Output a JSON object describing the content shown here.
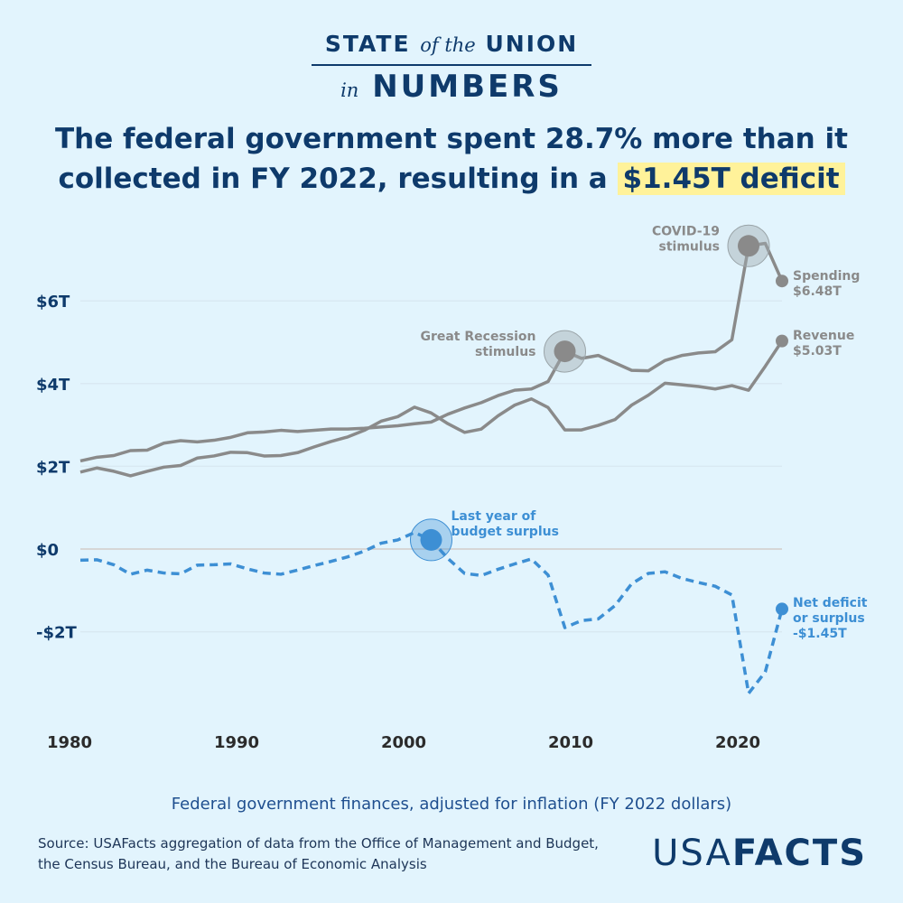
{
  "header": {
    "brand_line1_a": "STATE",
    "brand_line1_b": "of the",
    "brand_line1_c": "UNION",
    "brand_line2_a": "in",
    "brand_line2_b": "NUMBERS",
    "headline_line1": "The federal government spent 28.7% more than it",
    "headline_line2": "collected in FY 2022, resulting in a",
    "headline_highlight": "$1.45T deficit"
  },
  "chart_data": {
    "type": "line",
    "title": "",
    "subtitle": "Federal government finances, adjusted for inflation (FY 2022 dollars)",
    "xlabel": "",
    "ylabel": "",
    "x": [
      1980,
      1981,
      1982,
      1983,
      1984,
      1985,
      1986,
      1987,
      1988,
      1989,
      1990,
      1991,
      1992,
      1993,
      1994,
      1995,
      1996,
      1997,
      1998,
      1999,
      2000,
      2001,
      2002,
      2003,
      2004,
      2005,
      2006,
      2007,
      2008,
      2009,
      2010,
      2011,
      2012,
      2013,
      2014,
      2015,
      2016,
      2017,
      2018,
      2019,
      2020,
      2021,
      2022
    ],
    "x_ticks": [
      "1980",
      "1990",
      "2000",
      "2010",
      "2020"
    ],
    "y_ticks": [
      {
        "value": -2,
        "label": "-$2T"
      },
      {
        "value": 0,
        "label": "$0"
      },
      {
        "value": 2,
        "label": "$2T"
      },
      {
        "value": 4,
        "label": "$4T"
      },
      {
        "value": 6,
        "label": "$6T"
      }
    ],
    "ylim": [
      -4,
      8
    ],
    "xlim": [
      1980,
      2022
    ],
    "grid": true,
    "series": [
      {
        "name": "Spending",
        "end_label": "$6.48T",
        "color": "#8a8a8a",
        "style": "solid",
        "values": [
          2.13,
          2.22,
          2.26,
          2.38,
          2.39,
          2.56,
          2.62,
          2.59,
          2.63,
          2.7,
          2.81,
          2.83,
          2.87,
          2.84,
          2.87,
          2.9,
          2.9,
          2.92,
          2.95,
          2.98,
          3.03,
          3.07,
          3.26,
          3.41,
          3.54,
          3.71,
          3.84,
          3.87,
          4.05,
          4.78,
          4.61,
          4.68,
          4.5,
          4.32,
          4.31,
          4.56,
          4.68,
          4.74,
          4.77,
          5.06,
          7.33,
          7.39,
          6.48
        ]
      },
      {
        "name": "Revenue",
        "end_label": "$5.03T",
        "color": "#8a8a8a",
        "style": "solid",
        "values": [
          1.86,
          1.96,
          1.88,
          1.77,
          1.88,
          1.98,
          2.02,
          2.2,
          2.25,
          2.34,
          2.33,
          2.25,
          2.26,
          2.33,
          2.47,
          2.6,
          2.71,
          2.87,
          3.09,
          3.2,
          3.43,
          3.29,
          3.03,
          2.82,
          2.9,
          3.22,
          3.48,
          3.63,
          3.42,
          2.88,
          2.88,
          2.99,
          3.13,
          3.48,
          3.72,
          4.01,
          3.97,
          3.93,
          3.87,
          3.95,
          3.84,
          4.42,
          5.03
        ]
      },
      {
        "name": "Net deficit or surplus",
        "name_line1": "Net deficit",
        "name_line2": "or surplus",
        "end_label": "-$1.45T",
        "color": "#3d8fd4",
        "style": "dashed",
        "values": [
          -0.27,
          -0.26,
          -0.38,
          -0.61,
          -0.51,
          -0.58,
          -0.6,
          -0.39,
          -0.38,
          -0.36,
          -0.48,
          -0.58,
          -0.61,
          -0.51,
          -0.4,
          -0.3,
          -0.19,
          -0.05,
          0.14,
          0.22,
          0.4,
          0.22,
          -0.23,
          -0.59,
          -0.64,
          -0.49,
          -0.36,
          -0.24,
          -0.63,
          -1.9,
          -1.73,
          -1.69,
          -1.37,
          -0.84,
          -0.59,
          -0.55,
          -0.71,
          -0.81,
          -0.9,
          -1.11,
          -3.49,
          -2.97,
          -1.45
        ]
      }
    ],
    "annotations": [
      {
        "x": 2009,
        "series": 0,
        "line1": "Great Recession",
        "line2": "stimulus"
      },
      {
        "x": 2020,
        "series": 0,
        "line1": "COVID-19",
        "line2": "stimulus"
      },
      {
        "x": 2001,
        "series": 2,
        "line1": "Last year of",
        "line2": "budget surplus"
      }
    ]
  },
  "footer": {
    "source_line1": "Source: USAFacts aggregation of data from the Office of Management and Budget,",
    "source_line2": "the Census Bureau, and the Bureau of Economic Analysis",
    "logo_a": "USA",
    "logo_b": "FACTS"
  }
}
